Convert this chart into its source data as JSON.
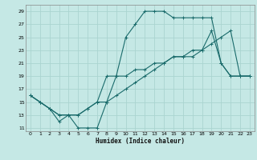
{
  "xlabel": "Humidex (Indice chaleur)",
  "bg_color": "#c5e8e5",
  "grid_color": "#aad4d0",
  "line_color": "#1a6b6b",
  "xlim": [
    -0.5,
    23.5
  ],
  "ylim": [
    10.5,
    30
  ],
  "xticks": [
    0,
    1,
    2,
    3,
    4,
    5,
    6,
    7,
    8,
    9,
    10,
    11,
    12,
    13,
    14,
    15,
    16,
    17,
    18,
    19,
    20,
    21,
    22,
    23
  ],
  "yticks": [
    11,
    13,
    15,
    17,
    19,
    21,
    23,
    25,
    27,
    29
  ],
  "line1_x": [
    0,
    1,
    2,
    3,
    4,
    5,
    6,
    7,
    8,
    9,
    10,
    11,
    12,
    13,
    14,
    15,
    16,
    17,
    18,
    19,
    20,
    21,
    22,
    23
  ],
  "line1_y": [
    16,
    15,
    14,
    12,
    13,
    11,
    11,
    11,
    15,
    19,
    25,
    27,
    29,
    29,
    29,
    28,
    28,
    28,
    28,
    28,
    21,
    19,
    19,
    19
  ],
  "line2_x": [
    0,
    1,
    2,
    3,
    4,
    5,
    6,
    7,
    8,
    9,
    10,
    11,
    12,
    13,
    14,
    15,
    16,
    17,
    18,
    19,
    20,
    21,
    22,
    23
  ],
  "line2_y": [
    16,
    15,
    14,
    13,
    13,
    13,
    14,
    15,
    15,
    16,
    17,
    18,
    19,
    20,
    21,
    22,
    22,
    23,
    23,
    24,
    25,
    26,
    19,
    19
  ],
  "line3_x": [
    0,
    1,
    2,
    3,
    4,
    5,
    6,
    7,
    8,
    9,
    10,
    11,
    12,
    13,
    14,
    15,
    16,
    17,
    18,
    19,
    20,
    21,
    22,
    23
  ],
  "line3_y": [
    16,
    15,
    14,
    13,
    13,
    13,
    14,
    15,
    19,
    19,
    19,
    20,
    20,
    21,
    21,
    22,
    22,
    22,
    23,
    26,
    21,
    19,
    19,
    19
  ]
}
